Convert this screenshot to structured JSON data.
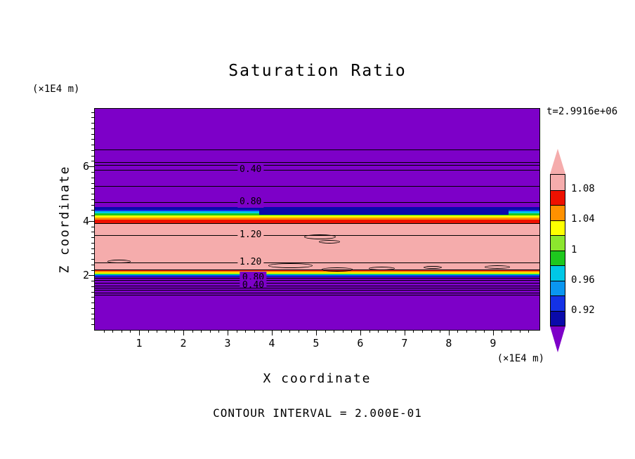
{
  "title": "Saturation Ratio",
  "time_label": "t=2.9916e+06",
  "contour_note": "CONTOUR INTERVAL = 2.000E-01",
  "axis": {
    "x_label": "X coordinate",
    "z_label": "Z coordinate",
    "x_unit": "(×1E4 m)",
    "z_unit": "(×1E4 m)"
  },
  "chart_data": {
    "type": "heatmap",
    "title": "Saturation Ratio",
    "xlabel": "X coordinate (×1E4 m)",
    "ylabel": "Z coordinate (×1E4 m)",
    "time": "t=2.9916e+06",
    "contour_interval": 0.2,
    "x_range": [
      0,
      10.05
    ],
    "z_range": [
      0,
      8.12
    ],
    "x_major_ticks": [
      1,
      2,
      3,
      4,
      5,
      6,
      7,
      8,
      9
    ],
    "z_major_ticks": [
      2,
      4,
      6
    ],
    "minor_tick_step": 0.2,
    "background_color": "#7D00C8",
    "bands": [
      {
        "z_from": 4.5,
        "z_to": 8.12,
        "value": "< 0.90",
        "color": "#7D00C8"
      },
      {
        "z_from": 4.42,
        "z_to": 4.5,
        "value": "0.90-0.92",
        "color": "#0A0AAA"
      },
      {
        "z_from": 4.36,
        "z_to": 4.42,
        "value": "0.92-0.94",
        "color": "#1432E6"
      },
      {
        "z_from": 4.27,
        "z_to": 4.36,
        "value": "0.94-0.98",
        "color": "#00C8E6"
      },
      {
        "z_from": 4.2,
        "z_to": 4.27,
        "value": "0.98-1.00",
        "color": "#1EC81E"
      },
      {
        "z_from": 4.13,
        "z_to": 4.2,
        "value": "1.00-1.04",
        "color": "#FFFF00"
      },
      {
        "z_from": 4.05,
        "z_to": 4.13,
        "value": "1.04-1.06",
        "color": "#FF9100"
      },
      {
        "z_from": 3.93,
        "z_to": 4.05,
        "value": "1.06-1.08",
        "color": "#EE1100"
      },
      {
        "z_from": 2.225,
        "z_to": 3.93,
        "value": "> 1.08",
        "color": "#F5ACAC"
      },
      {
        "z_from": 2.165,
        "z_to": 2.225,
        "value": "1.06-1.08",
        "color": "#EE1100"
      },
      {
        "z_from": 2.105,
        "z_to": 2.165,
        "value": "1.04-1.06",
        "color": "#FF9100"
      },
      {
        "z_from": 2.065,
        "z_to": 2.105,
        "value": "1.00-1.04",
        "color": "#FFFF00"
      },
      {
        "z_from": 2.03,
        "z_to": 2.065,
        "value": "0.98-1.00",
        "color": "#1EC81E"
      },
      {
        "z_from": 2.0,
        "z_to": 2.03,
        "value": "0.94-0.98",
        "color": "#00C8E6"
      },
      {
        "z_from": 1.97,
        "z_to": 2.0,
        "value": "0.92-0.94",
        "color": "#1432E6"
      },
      {
        "z_from": 1.94,
        "z_to": 1.97,
        "value": "0.90-0.92",
        "color": "#0A0AAA"
      },
      {
        "z_from": 0,
        "z_to": 1.94,
        "value": "< 0.90",
        "color": "#7D00C8"
      }
    ],
    "patches": [
      {
        "x_from": 0.37,
        "x_to": 0.93,
        "z_from": 4.22,
        "z_to": 4.4,
        "color": "#0A0AAA"
      }
    ],
    "contour_lines": [
      {
        "z": 6.62
      },
      {
        "z": 6.16
      },
      {
        "z": 6.06
      },
      {
        "z": 5.88,
        "label": "0.40",
        "label_x": 3.52
      },
      {
        "z": 5.28
      },
      {
        "z": 4.69,
        "label": "0.80",
        "label_x": 3.52
      },
      {
        "z": 3.92
      },
      {
        "z": 3.48,
        "label": "1.20",
        "label_x": 3.52
      },
      {
        "z": 2.47,
        "label": "1.20",
        "label_x": 3.52
      },
      {
        "z": 2.225
      },
      {
        "z": 1.9,
        "label": "0.80",
        "label_x": 3.58
      },
      {
        "z": 1.83
      },
      {
        "z": 1.73
      },
      {
        "z": 1.63,
        "label": "0.40",
        "label_x": 3.58
      },
      {
        "z": 1.55
      },
      {
        "z": 1.47
      },
      {
        "z": 1.37
      },
      {
        "z": 1.3
      }
    ],
    "closed_contours": [
      {
        "x": 0.506,
        "y": 0.578,
        "w": 0.071,
        "h": 0.022
      },
      {
        "x": 0.528,
        "y": 0.601,
        "w": 0.047,
        "h": 0.016
      },
      {
        "x": 0.055,
        "y": 0.69,
        "w": 0.052,
        "h": 0.015
      },
      {
        "x": 0.44,
        "y": 0.71,
        "w": 0.1,
        "h": 0.022
      },
      {
        "x": 0.545,
        "y": 0.727,
        "w": 0.07,
        "h": 0.018
      },
      {
        "x": 0.645,
        "y": 0.722,
        "w": 0.058,
        "h": 0.016
      },
      {
        "x": 0.76,
        "y": 0.718,
        "w": 0.04,
        "h": 0.014
      },
      {
        "x": 0.905,
        "y": 0.716,
        "w": 0.058,
        "h": 0.016
      }
    ],
    "colorbar": {
      "labels": [
        "1.08",
        "1.04",
        "1",
        "0.96",
        "0.92"
      ],
      "segment_values_top_to_bottom": [
        "> 1.08",
        "1.06-1.08",
        "1.04-1.06",
        "1.02-1.04",
        "1.00-1.02",
        "0.98-1.00",
        "0.96-0.98",
        "0.94-0.96",
        "0.92-0.94",
        "0.90-0.92"
      ],
      "segment_colors_top_to_bottom": [
        "#F5ACAC",
        "#EE1100",
        "#FF9100",
        "#FFFF00",
        "#8CE62E",
        "#1EC81E",
        "#00C8E6",
        "#0A96F0",
        "#1432E6",
        "#0A0AAA"
      ],
      "arrow_top_color": "#F5ACAC",
      "arrow_bottom_color": "#7D00C8"
    }
  }
}
